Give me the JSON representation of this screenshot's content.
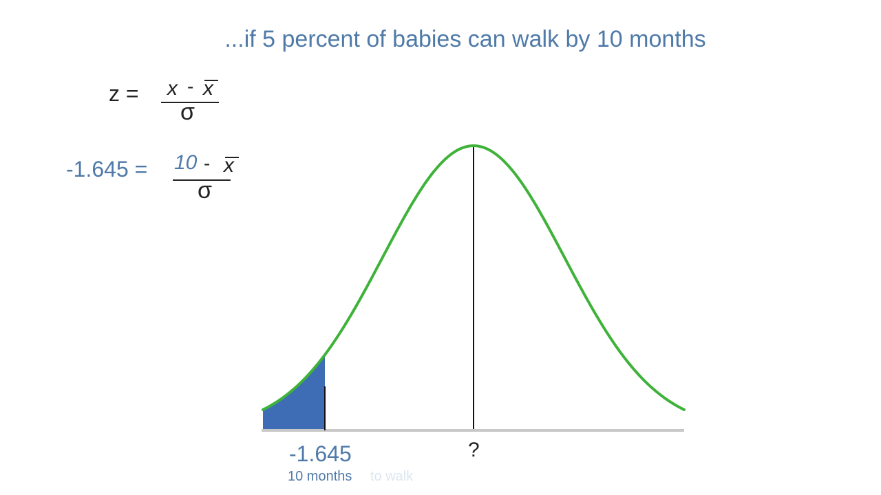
{
  "heading": "...if 5 percent of babies can walk by 10 months",
  "formula_general": {
    "lhs": "z =",
    "numerator_x": "x",
    "minus": "-",
    "numerator_xbar": "x",
    "denominator": "σ"
  },
  "formula_applied": {
    "lhs": "-1.645 =",
    "numerator_value": "10",
    "minus": "-",
    "numerator_xbar": "x",
    "denominator": "σ"
  },
  "axis_labels": {
    "z_value": "-1.645",
    "mean_unknown": "?",
    "months_label": "10 months",
    "faded_text": "to walk"
  },
  "shaded_area_fraction": 0.05,
  "colors": {
    "curve": "#3fb23a",
    "shaded": "#3e6db5",
    "blue_text": "#4f7aa8",
    "axis": "#c8c8c8",
    "ink": "#222222"
  }
}
